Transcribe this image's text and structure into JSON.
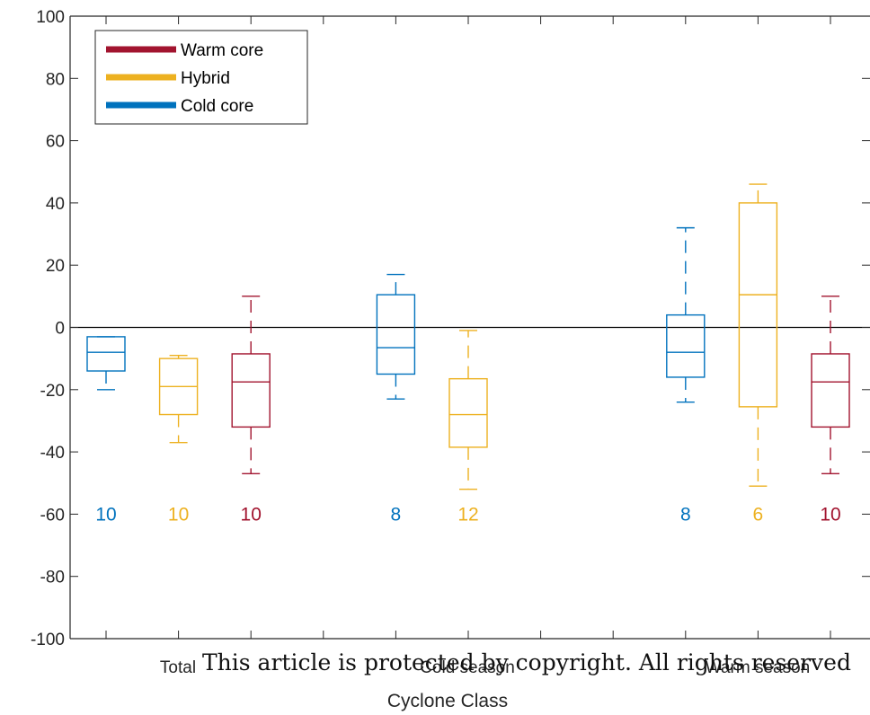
{
  "chart_data": {
    "type": "box",
    "xlabel": "Cyclone Class",
    "ylabel": "",
    "ylim": [
      -100,
      100
    ],
    "yticks": [
      -100,
      -80,
      -60,
      -40,
      -20,
      0,
      20,
      40,
      60,
      80,
      100
    ],
    "categories": [
      "Total",
      "Cold season",
      "Warm season"
    ],
    "zero_line": true,
    "grid": false,
    "legend": {
      "placement": "top-left",
      "entries": [
        {
          "name": "Warm core",
          "color": "#a2142f"
        },
        {
          "name": "Hybrid",
          "color": "#edb120"
        },
        {
          "name": "Cold core",
          "color": "#0072bd"
        }
      ]
    },
    "boxes": [
      {
        "category": "Total",
        "series": "Cold core",
        "color": "#0072bd",
        "whisker_low": -20,
        "q1": -14,
        "median": -8,
        "q3": -3,
        "whisker_high": -3,
        "count": "10"
      },
      {
        "category": "Total",
        "series": "Hybrid",
        "color": "#edb120",
        "whisker_low": -37,
        "q1": -28,
        "median": -19,
        "q3": -10,
        "whisker_high": -9,
        "count": "10"
      },
      {
        "category": "Total",
        "series": "Warm core",
        "color": "#a2142f",
        "whisker_low": -47,
        "q1": -32,
        "median": -17.5,
        "q3": -8.5,
        "whisker_high": 10,
        "count": "10"
      },
      {
        "category": "Cold season",
        "series": "Cold core",
        "color": "#0072bd",
        "whisker_low": -23,
        "q1": -15,
        "median": -6.5,
        "q3": 10.5,
        "whisker_high": 17,
        "count": "8"
      },
      {
        "category": "Cold season",
        "series": "Hybrid",
        "color": "#edb120",
        "whisker_low": -52,
        "q1": -38.5,
        "median": -28,
        "q3": -16.5,
        "whisker_high": -1,
        "count": "12"
      },
      {
        "category": "Warm season",
        "series": "Cold core",
        "color": "#0072bd",
        "whisker_low": -24,
        "q1": -16,
        "median": -8,
        "q3": 4,
        "whisker_high": 32,
        "count": "8"
      },
      {
        "category": "Warm season",
        "series": "Hybrid",
        "color": "#edb120",
        "whisker_low": -51,
        "q1": -25.5,
        "median": 10.5,
        "q3": 40,
        "whisker_high": 46,
        "count": "6"
      },
      {
        "category": "Warm season",
        "series": "Warm core",
        "color": "#a2142f",
        "whisker_low": -47,
        "q1": -32,
        "median": -17.5,
        "q3": -8.5,
        "whisker_high": 10,
        "count": "10"
      }
    ],
    "count_labels_at": -60
  },
  "watermark_text": "This article is protected by copyright. All rights reserved"
}
